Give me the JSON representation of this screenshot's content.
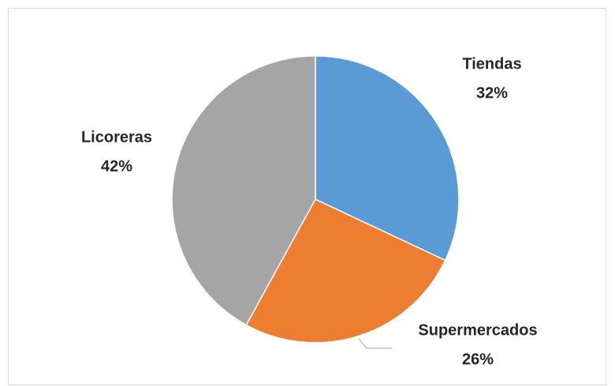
{
  "chart_data": {
    "type": "pie",
    "categories": [
      "Tiendas",
      "Supermercados",
      "Licoreras"
    ],
    "values": [
      32,
      26,
      42
    ],
    "value_labels": [
      "32%",
      "26%",
      "42%"
    ],
    "colors": [
      "#5b9bd5",
      "#ed7d31",
      "#a5a5a5"
    ]
  }
}
